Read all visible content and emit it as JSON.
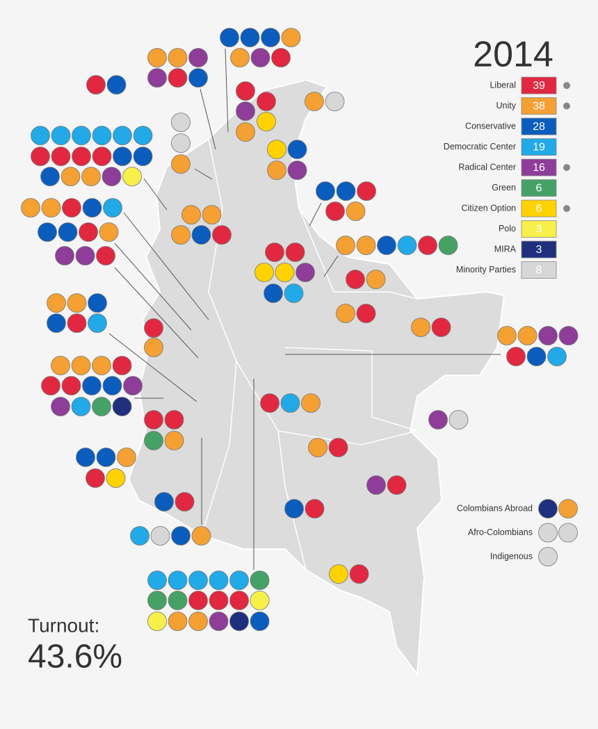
{
  "title": "2014",
  "parties": [
    {
      "name": "Liberal",
      "seats": 39,
      "color": "#e12840"
    },
    {
      "name": "Unity",
      "seats": 38,
      "color": "#f4a033"
    },
    {
      "name": "Conservative",
      "seats": 28,
      "color": "#0b5dbd"
    },
    {
      "name": "Democratic Center",
      "seats": 19,
      "color": "#21a9e8"
    },
    {
      "name": "Radical Center",
      "seats": 16,
      "color": "#8e3d98"
    },
    {
      "name": "Green",
      "seats": 6,
      "color": "#46a166"
    },
    {
      "name": "Citizen Option",
      "seats": 6,
      "color": "#ffd200"
    },
    {
      "name": "Polo",
      "seats": 3,
      "color": "#f8f04a"
    },
    {
      "name": "MIRA",
      "seats": 3,
      "color": "#1f2f7e"
    },
    {
      "name": "Minority Parties",
      "seats": 8,
      "color": "#d7d7d7"
    }
  ],
  "special": [
    {
      "label": "Colombians Abroad",
      "seats": [
        8,
        1
      ]
    },
    {
      "label": "Afro-Colombians",
      "seats": [
        9,
        9
      ]
    },
    {
      "label": "Indigenous",
      "seats": [
        9
      ]
    }
  ],
  "departments": [
    [
      [
        0,
        2
      ]
    ],
    [
      [
        2,
        2,
        2,
        1
      ],
      [
        1,
        4,
        0
      ]
    ],
    [
      [
        1,
        1,
        4
      ],
      [
        4,
        0,
        2
      ]
    ],
    [
      [
        0
      ],
      [
        0
      ],
      [
        4
      ],
      [
        6
      ],
      [
        1
      ]
    ],
    [
      [
        1,
        9
      ]
    ],
    [
      [
        9
      ],
      [
        9
      ],
      [
        1
      ]
    ],
    [
      [
        3,
        3,
        3,
        3,
        3,
        3
      ],
      [
        0,
        0,
        0,
        0,
        2,
        2
      ],
      [
        2,
        1,
        1,
        4,
        7
      ]
    ],
    [
      [
        6,
        2
      ],
      [
        1,
        4
      ]
    ],
    [
      [
        2,
        2,
        0
      ],
      [
        0,
        1
      ]
    ],
    [
      [
        1,
        1
      ],
      [
        1,
        2,
        0
      ]
    ],
    [
      [
        1,
        1,
        0,
        2,
        3
      ],
      [
        2,
        2,
        0,
        1
      ],
      [
        4,
        4,
        0
      ]
    ],
    [
      [
        0,
        0
      ],
      [
        6,
        6,
        4
      ],
      [
        2,
        3
      ]
    ],
    [
      [
        1,
        1,
        2,
        3,
        0,
        5
      ]
    ],
    [
      [
        0,
        1
      ]
    ],
    [
      [
        1,
        1,
        2
      ],
      [
        2,
        0,
        3
      ]
    ],
    [
      [
        0
      ],
      [
        1
      ]
    ],
    [
      [
        1,
        0
      ]
    ],
    [
      [
        1,
        0
      ]
    ],
    [
      [
        1,
        1,
        4,
        4
      ],
      [
        0,
        2,
        3
      ]
    ],
    [
      [
        1,
        1,
        1,
        0
      ],
      [
        0,
        0,
        2,
        2,
        4
      ],
      [
        4,
        3,
        5,
        8
      ]
    ],
    [
      [
        0,
        3,
        1
      ]
    ],
    [
      [
        0,
        0
      ],
      [
        5,
        1
      ]
    ],
    [
      [
        4,
        9
      ]
    ],
    [
      [
        2,
        2,
        1
      ],
      [
        0,
        6
      ]
    ],
    [
      [
        1,
        0
      ]
    ],
    [
      [
        4,
        0
      ]
    ],
    [
      [
        2,
        0
      ]
    ],
    [
      [
        2,
        0
      ]
    ],
    [
      [
        3,
        9,
        2,
        1
      ]
    ],
    [
      [
        3,
        3,
        3,
        3,
        3,
        5
      ],
      [
        5,
        5,
        0,
        0,
        0,
        7
      ],
      [
        7,
        1,
        1,
        4,
        8,
        2
      ]
    ],
    [
      [
        6,
        0
      ]
    ]
  ],
  "turnout": {
    "label": "Turnout:",
    "value": "43.6%"
  }
}
